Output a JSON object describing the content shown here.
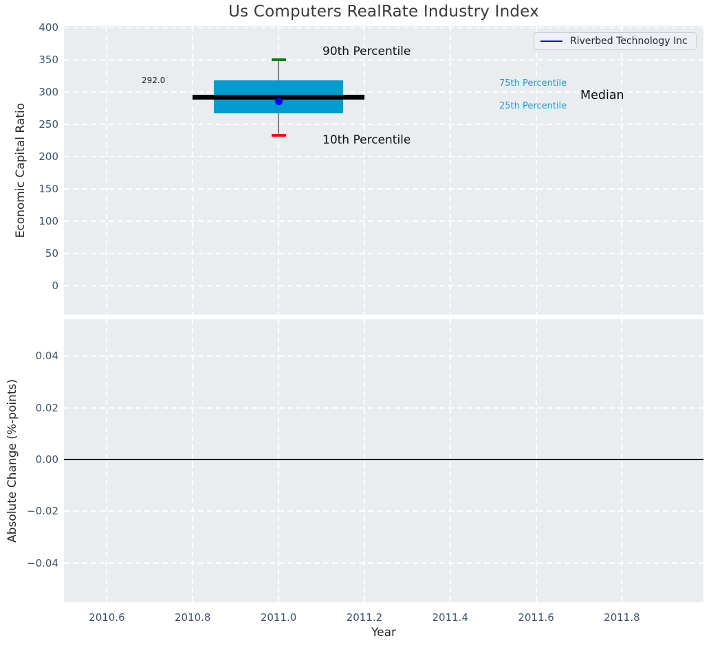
{
  "figure_title": "Us Computers RealRate Industry Index",
  "colors": {
    "plot_background": "#e9edf0",
    "grid": "#ffffff",
    "tick_label": "#41526b",
    "box": "#029bd0",
    "median": "#000000",
    "p90_cap": "#008000",
    "p10_cap": "#ff0000",
    "whisker": "#808080",
    "company_marker": "#0000ff",
    "legend_line": "#0000ee",
    "percentile_label": "#1ba0cd"
  },
  "chart_data": [
    {
      "type": "box",
      "title": "Us Computers RealRate Industry Index",
      "ylabel": "Economic Capital Ratio",
      "xlabel": "",
      "xlim": [
        2010.5,
        2011.99
      ],
      "ylim": [
        -45,
        402
      ],
      "yticks": {
        "values": [
          0,
          50,
          100,
          150,
          200,
          250,
          300,
          350,
          400
        ],
        "labels": [
          "0",
          "50",
          "100",
          "150",
          "200",
          "250",
          "300",
          "350",
          "400"
        ]
      },
      "xticks": {
        "values": [
          2010.6,
          2010.8,
          2011.0,
          2011.2,
          2011.4,
          2011.6,
          2011.8
        ],
        "labels": [
          "2010.6",
          "2010.8",
          "2011.0",
          "2011.2",
          "2011.4",
          "2011.6",
          "2011.8"
        ]
      },
      "grid": "white dashed, on",
      "legend": {
        "position": "upper right",
        "entries": [
          {
            "label": "Riverbed Technology Inc",
            "color": "#0000ee"
          }
        ]
      },
      "box": {
        "year": 2011.0,
        "p10": 233,
        "p25": 267,
        "median": 292.0,
        "p75": 318,
        "p90": 350,
        "box_left_year": 2010.85,
        "box_right_year": 2011.15,
        "median_left_year": 2010.8,
        "median_right_year": 2011.2
      },
      "company_point": {
        "name": "Riverbed Technology Inc",
        "year": 2011.0,
        "value": 285
      },
      "labels": {
        "median_value": "292.0",
        "p90": "90th Percentile",
        "p10": "10th Percentile",
        "p75": "75th Percentile",
        "p25": "25th Percentile",
        "median": "Median"
      }
    },
    {
      "type": "line",
      "title": "",
      "ylabel": "Absolute Change (%-points)",
      "xlabel": "Year",
      "xlim": [
        2010.5,
        2011.99
      ],
      "ylim": [
        -0.0552,
        0.0542
      ],
      "yticks": {
        "values": [
          0.04,
          0.02,
          0.0,
          -0.02,
          -0.04
        ],
        "labels": [
          "0.04",
          "0.02",
          "0.00",
          "−0.02",
          "−0.04"
        ]
      },
      "xticks": {
        "values": [
          2010.6,
          2010.8,
          2011.0,
          2011.2,
          2011.4,
          2011.6,
          2011.8
        ],
        "labels": [
          "2010.6",
          "2010.8",
          "2011.0",
          "2011.2",
          "2011.4",
          "2011.6",
          "2011.8"
        ]
      },
      "grid": "white dashed, on",
      "zero_line": 0.0,
      "series": []
    }
  ]
}
